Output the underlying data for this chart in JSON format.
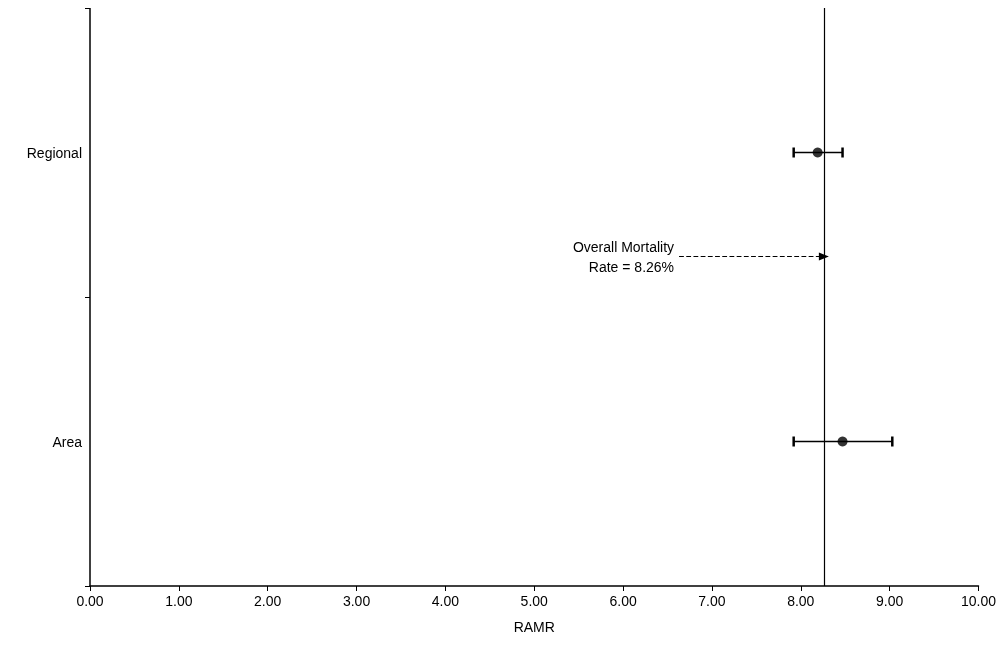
{
  "chart_data": {
    "type": "scatter",
    "orientation": "horizontal",
    "xlabel": "RAMR",
    "categories": [
      "Regional",
      "Area"
    ],
    "values": [
      8.19,
      8.47
    ],
    "errors": [
      [
        7.92,
        8.47
      ],
      [
        7.92,
        9.03
      ]
    ],
    "color": "#000000",
    "marker": "circle",
    "grid": false,
    "xlim": [
      0,
      10
    ],
    "xticks": [
      {
        "value": 0,
        "label": "0.00"
      },
      {
        "value": 1,
        "label": "1.00"
      },
      {
        "value": 2,
        "label": "2.00"
      },
      {
        "value": 3,
        "label": "3.00"
      },
      {
        "value": 4,
        "label": "4.00"
      },
      {
        "value": 5,
        "label": "5.00"
      },
      {
        "value": 6,
        "label": "6.00"
      },
      {
        "value": 7,
        "label": "7.00"
      },
      {
        "value": 8,
        "label": "8.00"
      },
      {
        "value": 9,
        "label": "9.00"
      },
      {
        "value": 10,
        "label": "10.00"
      }
    ],
    "ref_lines": [
      {
        "axis": "x",
        "value": 8.26,
        "label": "Overall Mortality\nRate = 8.26%",
        "color": "#000000"
      }
    ]
  }
}
